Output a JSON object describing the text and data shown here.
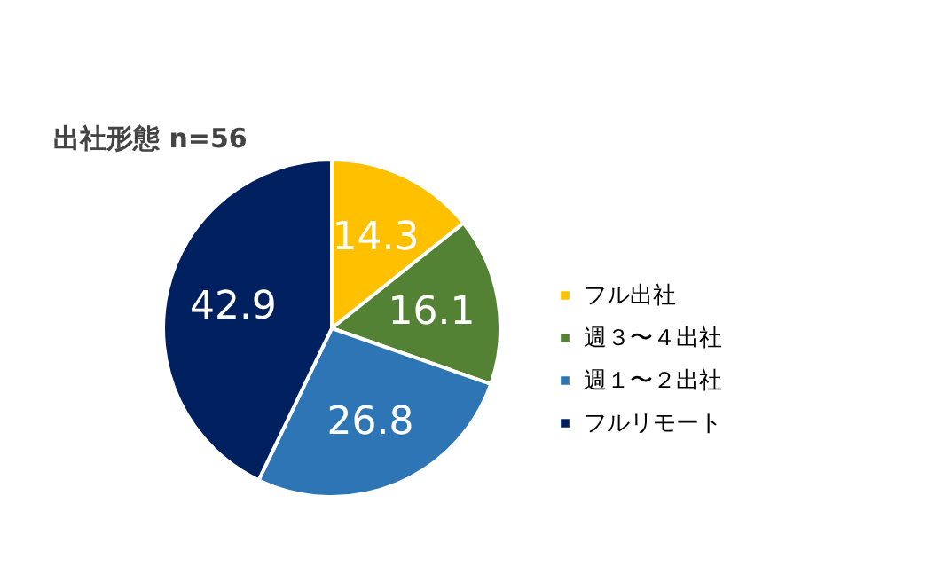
{
  "chart_data": {
    "type": "pie",
    "title": "出社形態 n=56",
    "categories": [
      "フル出社",
      "週３〜４出社",
      "週１〜２出社",
      "フルリモート"
    ],
    "values": [
      14.3,
      16.1,
      26.8,
      42.9
    ],
    "colors": [
      "#ffc000",
      "#548235",
      "#2e75b6",
      "#002060"
    ],
    "data_labels": true,
    "legend": "right"
  }
}
